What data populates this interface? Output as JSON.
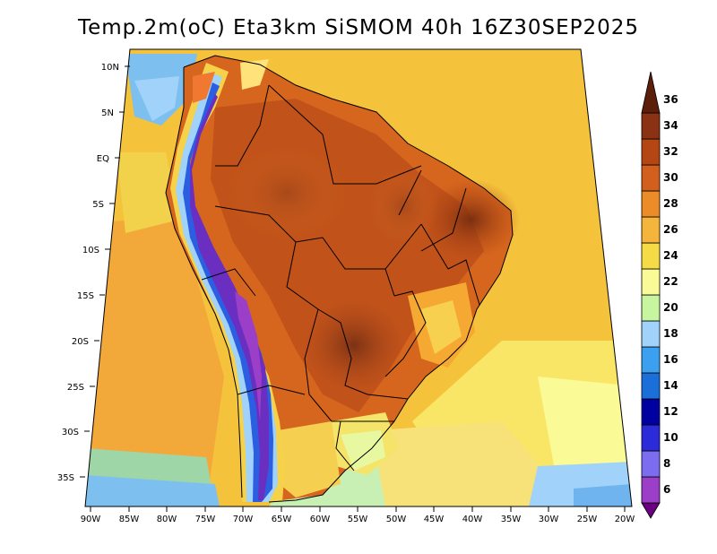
{
  "title": "Temp.2m(oC) Eta3km SiSMOM 40h 16Z30SEP2025",
  "map": {
    "variable": "2m temperature",
    "units": "oC",
    "lat_labels": [
      "10N",
      "5N",
      "EQ",
      "5S",
      "10S",
      "15S",
      "20S",
      "25S",
      "30S",
      "35S"
    ],
    "lon_labels": [
      "90W",
      "85W",
      "80W",
      "75W",
      "70W",
      "65W",
      "60W",
      "55W",
      "50W",
      "45W",
      "40W",
      "35W",
      "30W",
      "25W",
      "20W"
    ]
  },
  "colorbar": {
    "labels": [
      "6",
      "8",
      "10",
      "12",
      "14",
      "16",
      "18",
      "20",
      "22",
      "24",
      "26",
      "28",
      "30",
      "32",
      "34",
      "36"
    ],
    "colors": [
      "#6a0080",
      "#9b3fc8",
      "#7b6cf0",
      "#2b2bd9",
      "#0000a0",
      "#1a6fd8",
      "#3ca0f0",
      "#a0d2fa",
      "#c8f5a0",
      "#fafa96",
      "#f5dc46",
      "#f5b43c",
      "#eb8c28",
      "#d25f1e",
      "#b44614",
      "#8c3214",
      "#5a1e0a"
    ]
  }
}
